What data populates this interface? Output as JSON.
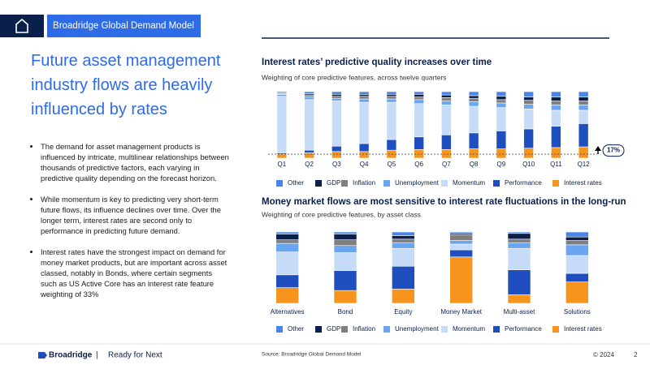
{
  "header": {
    "title": "Broadridge Global Demand Model"
  },
  "heading": "Future asset management industry flows are heavily influenced by rates",
  "bullets": [
    "The demand for asset management products is influenced by intricate, multilinear relationships between thousands of predictive factors, each varying in predictive quality depending on the forecast horizon.",
    "While momentum is key to predicting very short-term future flows, its influence declines over time. Over the longer term, interest rates are second only to performance in predicting future demand.",
    "Interest rates have the strongest impact on demand for money market products, but are important across asset classed, notably in Bonds, where certain segments such as US Active Core has an interest rate feature weighting of 33%"
  ],
  "footer": {
    "brand": "Broadridge",
    "separator": "|",
    "tagline": "Ready for Next",
    "source": "Source: Broadridge Global Demand Model",
    "copyright": "© 2024",
    "page": "2"
  },
  "chart_data": [
    {
      "type": "bar",
      "stacked": true,
      "title": "Interest rates’ predictive quality increases over time",
      "subtitle": "Weighting of core predictive features, across twelve quarters",
      "categories": [
        "Q1",
        "Q2",
        "Q3",
        "Q4",
        "Q5",
        "Q6",
        "Q7",
        "Q8",
        "Q9",
        "Q10",
        "Q11",
        "Q12"
      ],
      "ylim": [
        0,
        100
      ],
      "annotation": "17%",
      "series": [
        {
          "name": "Other",
          "color": "#4a86e8",
          "values": [
            2,
            3,
            4,
            4,
            4,
            4,
            5,
            6,
            7,
            8,
            8,
            8
          ]
        },
        {
          "name": "GDP",
          "color": "#0b1f4b",
          "values": [
            1,
            2,
            3,
            3,
            3,
            4,
            4,
            4,
            5,
            5,
            6,
            6
          ]
        },
        {
          "name": "Inflation",
          "color": "#7f7f7f",
          "values": [
            1,
            3,
            3,
            4,
            4,
            4,
            5,
            5,
            5,
            6,
            6,
            6
          ]
        },
        {
          "name": "Unemployment",
          "color": "#6aa5f2",
          "values": [
            3,
            4,
            4,
            5,
            5,
            6,
            6,
            7,
            7,
            7,
            8,
            8
          ]
        },
        {
          "name": "Momentum",
          "color": "#c6dbf7",
          "values": [
            85,
            76,
            68,
            62,
            56,
            50,
            45,
            40,
            35,
            30,
            24,
            20
          ]
        },
        {
          "name": "Performance",
          "color": "#1f4fbf",
          "values": [
            2,
            4,
            8,
            12,
            16,
            19,
            22,
            24,
            27,
            29,
            32,
            35
          ]
        },
        {
          "name": "Interest rates",
          "color": "#f7941d",
          "values": [
            6,
            8,
            10,
            10,
            12,
            13,
            13,
            14,
            14,
            15,
            16,
            17
          ]
        }
      ]
    },
    {
      "type": "bar",
      "stacked": true,
      "title": "Money market flows are most sensitive to interest rate fluctuations in the long-run",
      "subtitle": "Weighting of core predictive features, by asset class",
      "categories": [
        "Alternatives",
        "Bond",
        "Equity",
        "Money Market",
        "Multi-asset",
        "Solutions"
      ],
      "ylim": [
        0,
        100
      ],
      "series": [
        {
          "name": "Other",
          "color": "#4a86e8",
          "values": [
            3,
            3,
            5,
            2,
            2,
            7
          ]
        },
        {
          "name": "GDP",
          "color": "#0b1f4b",
          "values": [
            8,
            8,
            5,
            2,
            8,
            5
          ]
        },
        {
          "name": "Inflation",
          "color": "#7f7f7f",
          "values": [
            5,
            8,
            5,
            8,
            5,
            6
          ]
        },
        {
          "name": "Unemployment",
          "color": "#6aa5f2",
          "values": [
            12,
            10,
            8,
            5,
            8,
            15
          ]
        },
        {
          "name": "Momentum",
          "color": "#c6dbf7",
          "values": [
            32,
            25,
            25,
            8,
            30,
            25
          ]
        },
        {
          "name": "Performance",
          "color": "#1f4fbf",
          "values": [
            18,
            28,
            32,
            10,
            35,
            12
          ]
        },
        {
          "name": "Interest rates",
          "color": "#f7941d",
          "values": [
            22,
            18,
            20,
            65,
            12,
            30
          ]
        }
      ]
    }
  ]
}
